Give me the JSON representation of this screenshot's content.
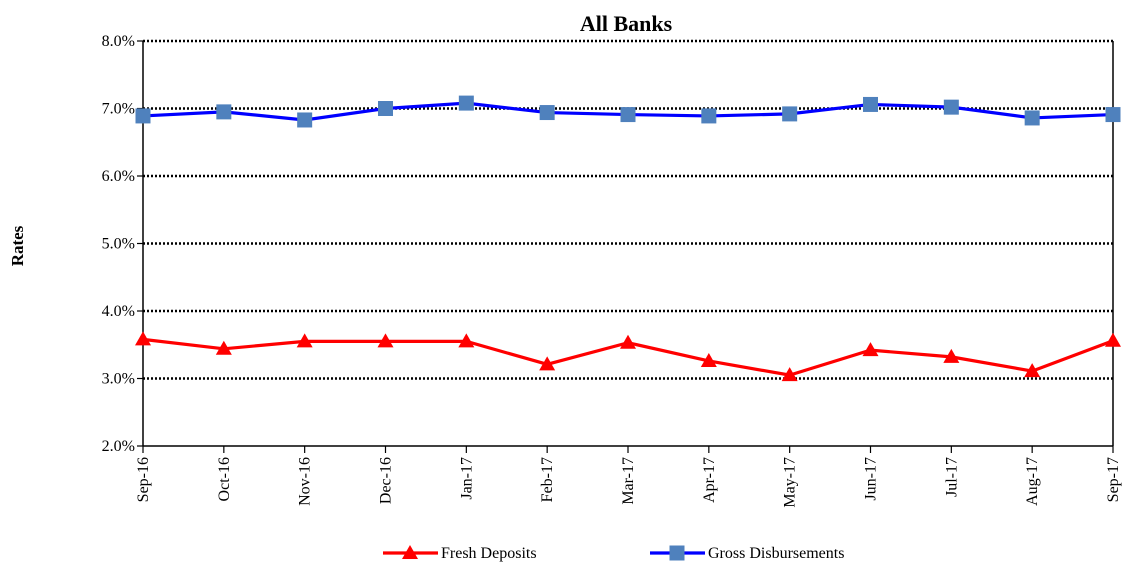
{
  "chart_data": {
    "type": "line",
    "title": "All Banks",
    "xlabel": "",
    "ylabel": "Rates",
    "categories": [
      "Sep-16",
      "Oct-16",
      "Nov-16",
      "Dec-16",
      "Jan-17",
      "Feb-17",
      "Mar-17",
      "Apr-17",
      "May-17",
      "Jun-17",
      "Jul-17",
      "Aug-17",
      "Sep-17"
    ],
    "ylim": [
      0.02,
      0.08
    ],
    "yticks": [
      "2.0%",
      "3.0%",
      "4.0%",
      "5.0%",
      "6.0%",
      "7.0%",
      "8.0%"
    ],
    "grid": true,
    "legend_position": "bottom",
    "series": [
      {
        "name": "Fresh Deposits",
        "color": "#ff0000",
        "marker": "triangle",
        "values": [
          0.0358,
          0.0344,
          0.0355,
          0.0355,
          0.0355,
          0.0321,
          0.0353,
          0.0326,
          0.0305,
          0.0342,
          0.0332,
          0.0311,
          0.0356
        ]
      },
      {
        "name": "Gross Disbursements",
        "color": "#0000ff",
        "marker_color": "#4f81bd",
        "marker": "square",
        "values": [
          0.0689,
          0.0695,
          0.0683,
          0.07,
          0.0708,
          0.0694,
          0.0691,
          0.0689,
          0.0692,
          0.0706,
          0.0702,
          0.0686,
          0.0691
        ]
      }
    ]
  }
}
